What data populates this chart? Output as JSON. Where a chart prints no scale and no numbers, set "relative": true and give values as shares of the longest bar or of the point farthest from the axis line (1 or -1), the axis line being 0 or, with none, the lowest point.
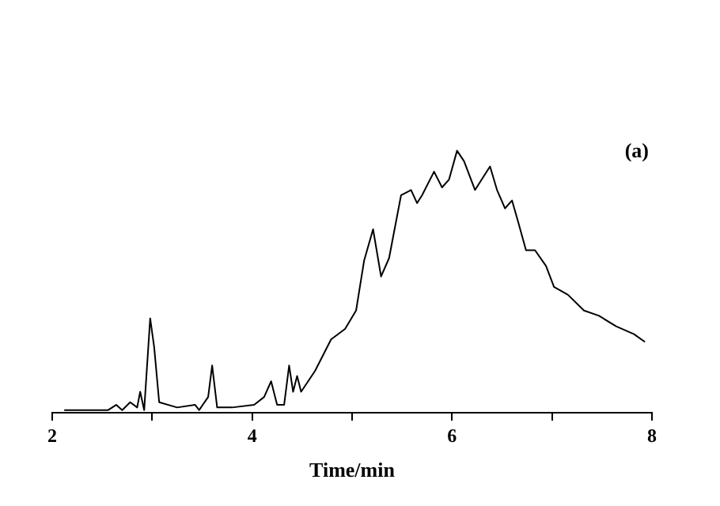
{
  "chart_data": {
    "type": "line",
    "relative": true,
    "xlabel": "Time/min",
    "annotations": [
      "(a)"
    ],
    "xlim": [
      2,
      8
    ],
    "xticks": [
      2,
      {
        "value": 3,
        "label": null
      },
      4,
      {
        "value": 5,
        "label": null
      },
      6,
      {
        "value": 7,
        "label": null
      },
      8
    ],
    "grid": false,
    "legend": false,
    "marker": "none",
    "line_style": "solid",
    "tick_labels": "x",
    "series": [
      {
        "color": "#000000",
        "x": [
          2.12,
          2.56,
          2.64,
          2.7,
          2.78,
          2.85,
          2.88,
          2.92,
          2.98,
          3.02,
          3.07,
          3.25,
          3.43,
          3.47,
          3.56,
          3.6,
          3.65,
          3.8,
          4.02,
          4.12,
          4.19,
          4.25,
          4.32,
          4.37,
          4.41,
          4.45,
          4.49,
          4.63,
          4.79,
          4.93,
          5.04,
          5.12,
          5.21,
          5.29,
          5.37,
          5.49,
          5.59,
          5.65,
          5.7,
          5.82,
          5.9,
          5.97,
          6.05,
          6.12,
          6.23,
          6.38,
          6.45,
          6.53,
          6.6,
          6.66,
          6.74,
          6.83,
          6.94,
          7.02,
          7.16,
          7.32,
          7.47,
          7.64,
          7.82,
          7.93
        ],
        "values": [
          0.01,
          0.01,
          0.03,
          0.01,
          0.04,
          0.02,
          0.08,
          0.01,
          0.36,
          0.25,
          0.04,
          0.02,
          0.03,
          0.01,
          0.06,
          0.18,
          0.02,
          0.02,
          0.03,
          0.06,
          0.12,
          0.03,
          0.03,
          0.18,
          0.08,
          0.14,
          0.08,
          0.16,
          0.28,
          0.32,
          0.39,
          0.58,
          0.7,
          0.52,
          0.59,
          0.83,
          0.85,
          0.8,
          0.83,
          0.92,
          0.86,
          0.89,
          1,
          0.96,
          0.85,
          0.94,
          0.85,
          0.78,
          0.81,
          0.73,
          0.62,
          0.62,
          0.56,
          0.48,
          0.45,
          0.39,
          0.37,
          0.33,
          0.3,
          0.27
        ]
      }
    ]
  }
}
